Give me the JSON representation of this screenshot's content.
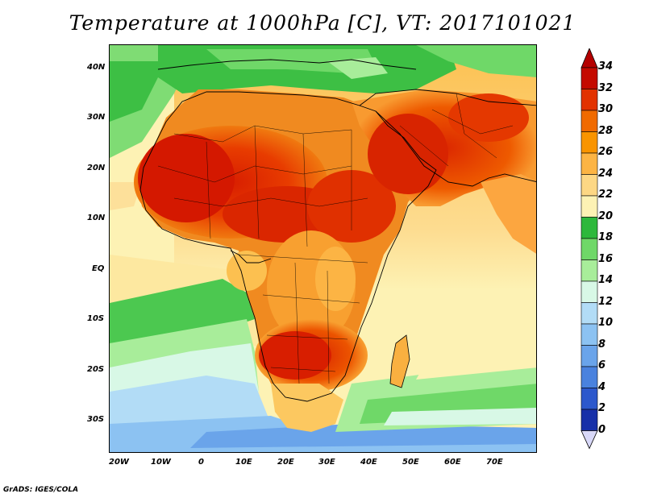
{
  "title": "Temperature at 1000hPa [C], VT: 2017101021",
  "credit": "GrADS: IGES/COLA",
  "map": {
    "variable": "Temperature at 1000hPa",
    "units": "C",
    "valid_time": "2017101021",
    "lon_range": [
      -25,
      80
    ],
    "lat_range": [
      -37,
      45
    ],
    "lon_ticks": [
      "20W",
      "10W",
      "0",
      "10E",
      "20E",
      "30E",
      "40E",
      "50E",
      "60E",
      "70E"
    ],
    "lat_ticks": [
      "40N",
      "30N",
      "20N",
      "10N",
      "EQ",
      "10S",
      "20S",
      "30S"
    ]
  },
  "colorbar": {
    "labels": [
      "34",
      "32",
      "30",
      "28",
      "26",
      "24",
      "22",
      "20",
      "18",
      "16",
      "14",
      "12",
      "10",
      "8",
      "6",
      "4",
      "2",
      "0"
    ],
    "colors": [
      "#c40a00",
      "#e23200",
      "#f06a00",
      "#f99400",
      "#fcb444",
      "#fdd784",
      "#fdf2b4",
      "#2db83c",
      "#6fd868",
      "#a8ed9a",
      "#d8f8e6",
      "#b2dcf6",
      "#8cc2f2",
      "#6aa4ea",
      "#4a82de",
      "#2c58cc",
      "#1730a8",
      "#0b0b6e"
    ],
    "arrow_top_color": "#b40000",
    "arrow_bottom_color": "#d8d8f8"
  }
}
